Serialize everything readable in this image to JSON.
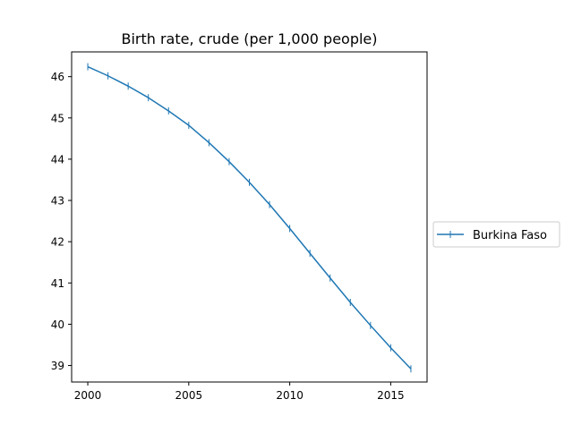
{
  "chart_data": {
    "type": "line",
    "title": "Birth rate, crude (per 1,000 people)",
    "xlabel": "",
    "ylabel": "",
    "x": [
      2000,
      2001,
      2002,
      2003,
      2004,
      2005,
      2006,
      2007,
      2008,
      2009,
      2010,
      2011,
      2012,
      2013,
      2014,
      2015,
      2016
    ],
    "series": [
      {
        "name": "Burkina Faso",
        "color": "#1f77b4",
        "marker": "vertical-tick",
        "values": [
          46.24,
          46.02,
          45.77,
          45.49,
          45.17,
          44.82,
          44.4,
          43.94,
          43.44,
          42.9,
          42.32,
          41.72,
          41.12,
          40.53,
          39.97,
          39.43,
          38.92
        ]
      }
    ],
    "xlim": [
      1999.2,
      2016.8
    ],
    "ylim": [
      38.6,
      46.6
    ],
    "xticks": [
      2000,
      2005,
      2010,
      2015
    ],
    "yticks": [
      39,
      40,
      41,
      42,
      43,
      44,
      45,
      46
    ],
    "grid": false,
    "legend_position": "right, outside plot"
  }
}
